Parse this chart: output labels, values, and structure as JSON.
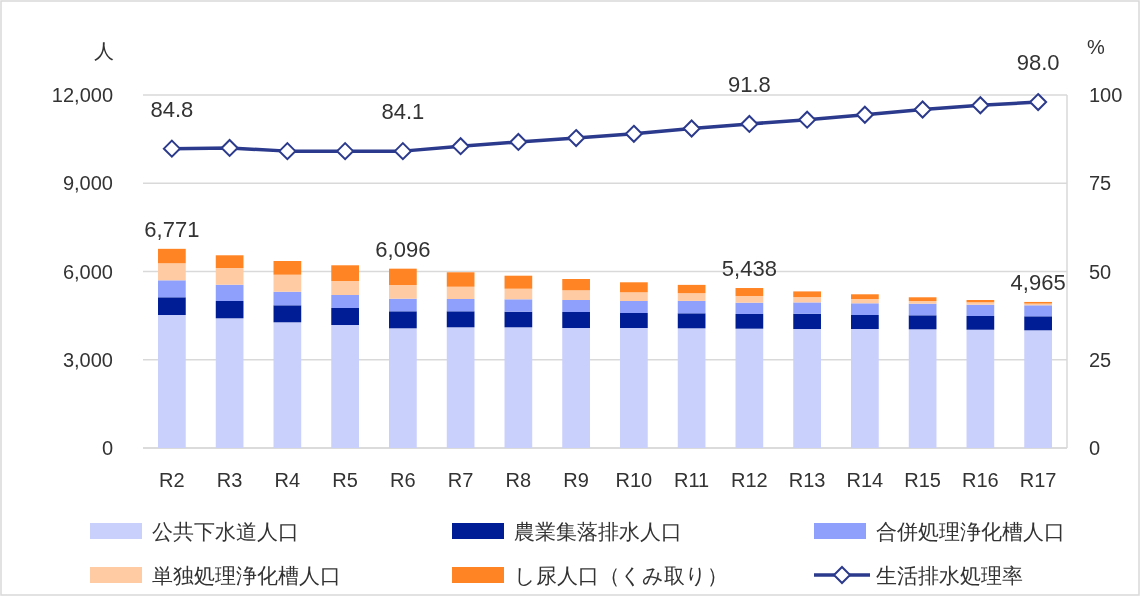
{
  "chart_data": {
    "type": "bar",
    "stacked": true,
    "ylabel": "人",
    "y2label": "%",
    "categories": [
      "R2",
      "R3",
      "R4",
      "R5",
      "R6",
      "R7",
      "R8",
      "R9",
      "R10",
      "R11",
      "R12",
      "R13",
      "R14",
      "R15",
      "R16",
      "R17"
    ],
    "series": [
      {
        "name": "公共下水道人口",
        "color": "#c9d0fc",
        "values": [
          4521,
          4409,
          4273,
          4181,
          4069,
          4103,
          4103,
          4079,
          4079,
          4069,
          4056,
          4045,
          4045,
          4035,
          4021,
          4001
        ]
      },
      {
        "name": "農業集落排水人口",
        "color": "#001d96",
        "values": [
          602,
          588,
          578,
          578,
          578,
          544,
          530,
          544,
          510,
          510,
          500,
          520,
          476,
          476,
          466,
          476
        ]
      },
      {
        "name": "合併処理浄化槽人口",
        "color": "#8fa0fc",
        "values": [
          578,
          554,
          462,
          442,
          428,
          418,
          422,
          408,
          408,
          422,
          384,
          384,
          398,
          394,
          384,
          374
        ]
      },
      {
        "name": "単独処理浄化槽人口",
        "color": "#ffcba3",
        "values": [
          578,
          568,
          578,
          476,
          466,
          418,
          360,
          330,
          296,
          262,
          228,
          180,
          146,
          92,
          82,
          58
        ]
      },
      {
        "name": "し尿人口（くみ取り）",
        "color": "#ff8424",
        "values": [
          492,
          432,
          466,
          534,
          555,
          490,
          442,
          384,
          340,
          282,
          270,
          194,
          160,
          126,
          78,
          56
        ]
      },
      {
        "name": "生活排水処理率",
        "type": "line",
        "axis": "y2",
        "marker": "diamond",
        "color": "#2b3a8c",
        "values": [
          84.8,
          85.0,
          84.1,
          84.1,
          84.1,
          85.5,
          86.7,
          87.8,
          89.0,
          90.5,
          91.8,
          93.0,
          94.4,
          95.9,
          97.1,
          98.0
        ],
        "value_labels": [
          "84.8",
          null,
          null,
          null,
          "84.1",
          null,
          null,
          null,
          null,
          null,
          "91.8",
          null,
          null,
          null,
          null,
          "98.0"
        ]
      }
    ],
    "totals": [
      "6,771",
      null,
      null,
      null,
      "6,096",
      null,
      null,
      null,
      null,
      null,
      "5,438",
      null,
      null,
      null,
      null,
      "4,965"
    ],
    "ylim": [
      0,
      12000
    ],
    "yticks": [
      {
        "value": 0,
        "label": "0"
      },
      {
        "value": 3000,
        "label": "3,000"
      },
      {
        "value": 6000,
        "label": "6,000"
      },
      {
        "value": 9000,
        "label": "9,000"
      },
      {
        "value": 12000,
        "label": "12,000"
      }
    ],
    "y2lim": [
      0,
      100
    ],
    "y2ticks": [
      0,
      25,
      50,
      75,
      100
    ],
    "grid": "y",
    "legend": "bottom"
  }
}
